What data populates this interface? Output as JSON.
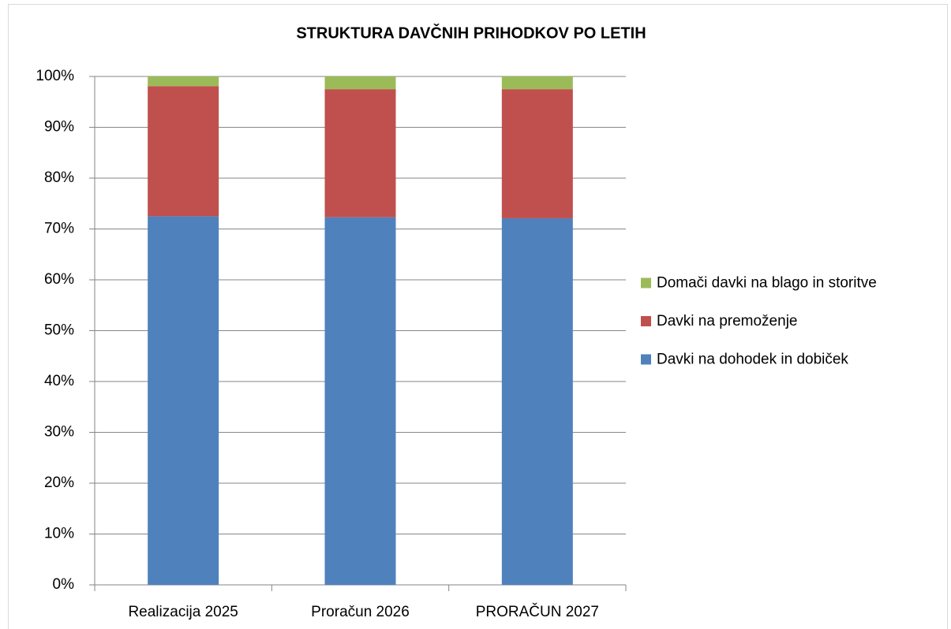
{
  "chart_data": {
    "type": "stacked_bar",
    "title": "STRUKTURA DAVČNIH PRIHODKOV PO LETIH",
    "categories": [
      "Realizacija 2025",
      "Proračun 2026",
      "PRORAČUN 2027"
    ],
    "series": [
      {
        "name": "Davki na dohodek in dobiček",
        "color": "#4f81bd",
        "values": [
          72.5,
          72.3,
          72.1
        ]
      },
      {
        "name": "Davki na premoženje",
        "color": "#c0504d",
        "values": [
          25.6,
          25.2,
          25.4
        ]
      },
      {
        "name": "Domači davki na blago in storitve",
        "color": "#9bbb59",
        "values": [
          1.9,
          2.5,
          2.5
        ]
      }
    ],
    "ylim": [
      0,
      100
    ],
    "yticks": [
      {
        "value": 0,
        "label": "0%"
      },
      {
        "value": 10,
        "label": "10%"
      },
      {
        "value": 20,
        "label": "20%"
      },
      {
        "value": 30,
        "label": "30%"
      },
      {
        "value": 40,
        "label": "40%"
      },
      {
        "value": 50,
        "label": "50%"
      },
      {
        "value": 60,
        "label": "60%"
      },
      {
        "value": 70,
        "label": "70%"
      },
      {
        "value": 80,
        "label": "80%"
      },
      {
        "value": 90,
        "label": "90%"
      },
      {
        "value": 100,
        "label": "100%"
      }
    ],
    "grid": true,
    "legend": "right"
  }
}
